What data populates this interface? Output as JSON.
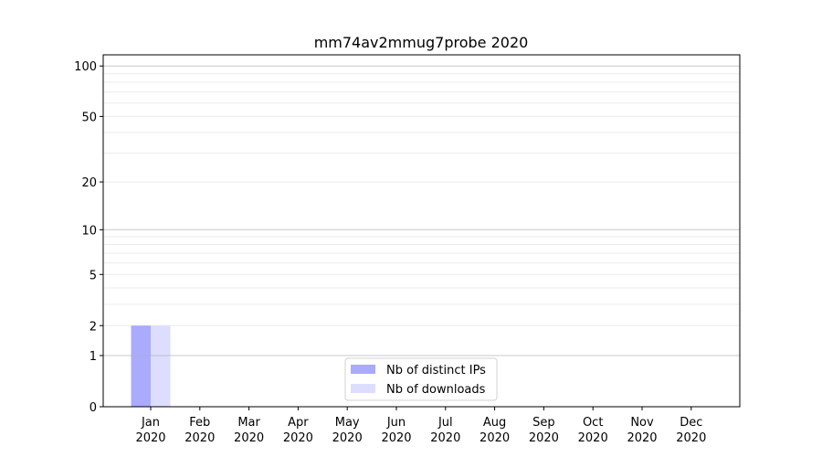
{
  "chart_data": {
    "type": "bar",
    "title": "mm74av2mmug7probe 2020",
    "xlabel": "",
    "ylabel": "",
    "y_scale": "log(1+y)",
    "ylim": [
      0,
      116
    ],
    "yticks": [
      0,
      1,
      2,
      5,
      10,
      20,
      50,
      100
    ],
    "grid": true,
    "legend_placement": "lower-center",
    "categories": [
      "Jan\n2020",
      "Feb\n2020",
      "Mar\n2020",
      "Apr\n2020",
      "May\n2020",
      "Jun\n2020",
      "Jul\n2020",
      "Aug\n2020",
      "Sep\n2020",
      "Oct\n2020",
      "Nov\n2020",
      "Dec\n2020"
    ],
    "series": [
      {
        "name": "Nb of distinct IPs",
        "color": "#aaaaff",
        "values": [
          2,
          0,
          0,
          0,
          0,
          0,
          0,
          0,
          0,
          0,
          0,
          0
        ]
      },
      {
        "name": "Nb of downloads",
        "color": "#ddddff",
        "values": [
          2,
          0,
          0,
          0,
          0,
          0,
          0,
          0,
          0,
          0,
          0,
          0
        ]
      }
    ]
  }
}
